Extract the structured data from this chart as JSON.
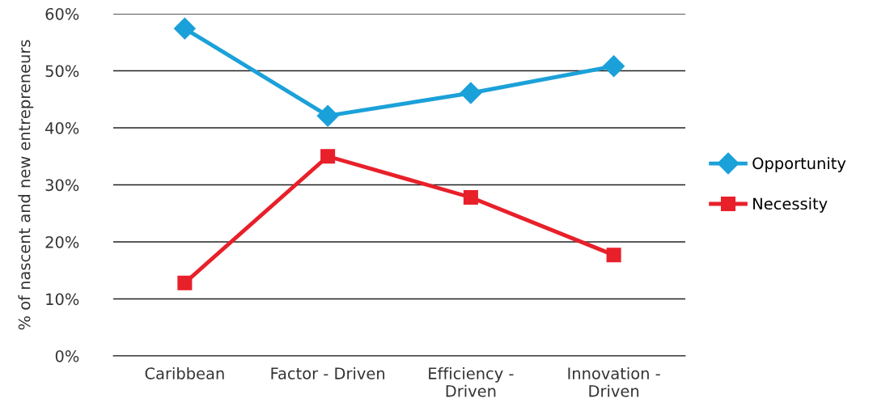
{
  "chart_data": {
    "type": "line",
    "ylabel": "% of nascent and new entrepreneurs",
    "categories": [
      "Caribbean",
      "Factor - Driven",
      "Efficiency -\nDriven",
      "Innovation -\nDriven"
    ],
    "series": [
      {
        "name": "Opportunity",
        "color": "#1ba1d9",
        "marker": "diamond",
        "values": [
          57.4,
          42.1,
          46.1,
          50.8
        ]
      },
      {
        "name": "Necessity",
        "color": "#e8202a",
        "marker": "square",
        "values": [
          12.8,
          35.0,
          27.8,
          17.7
        ]
      }
    ],
    "ylim": [
      0,
      60
    ],
    "yticks": [
      {
        "value": 0,
        "label": "0%"
      },
      {
        "value": 10,
        "label": "10%"
      },
      {
        "value": 20,
        "label": "20%"
      },
      {
        "value": 30,
        "label": "30%"
      },
      {
        "value": 40,
        "label": "40%"
      },
      {
        "value": 50,
        "label": "50%"
      },
      {
        "value": 60,
        "label": "60%"
      }
    ],
    "grid": "y",
    "legend": "right",
    "line_style": "solid"
  }
}
